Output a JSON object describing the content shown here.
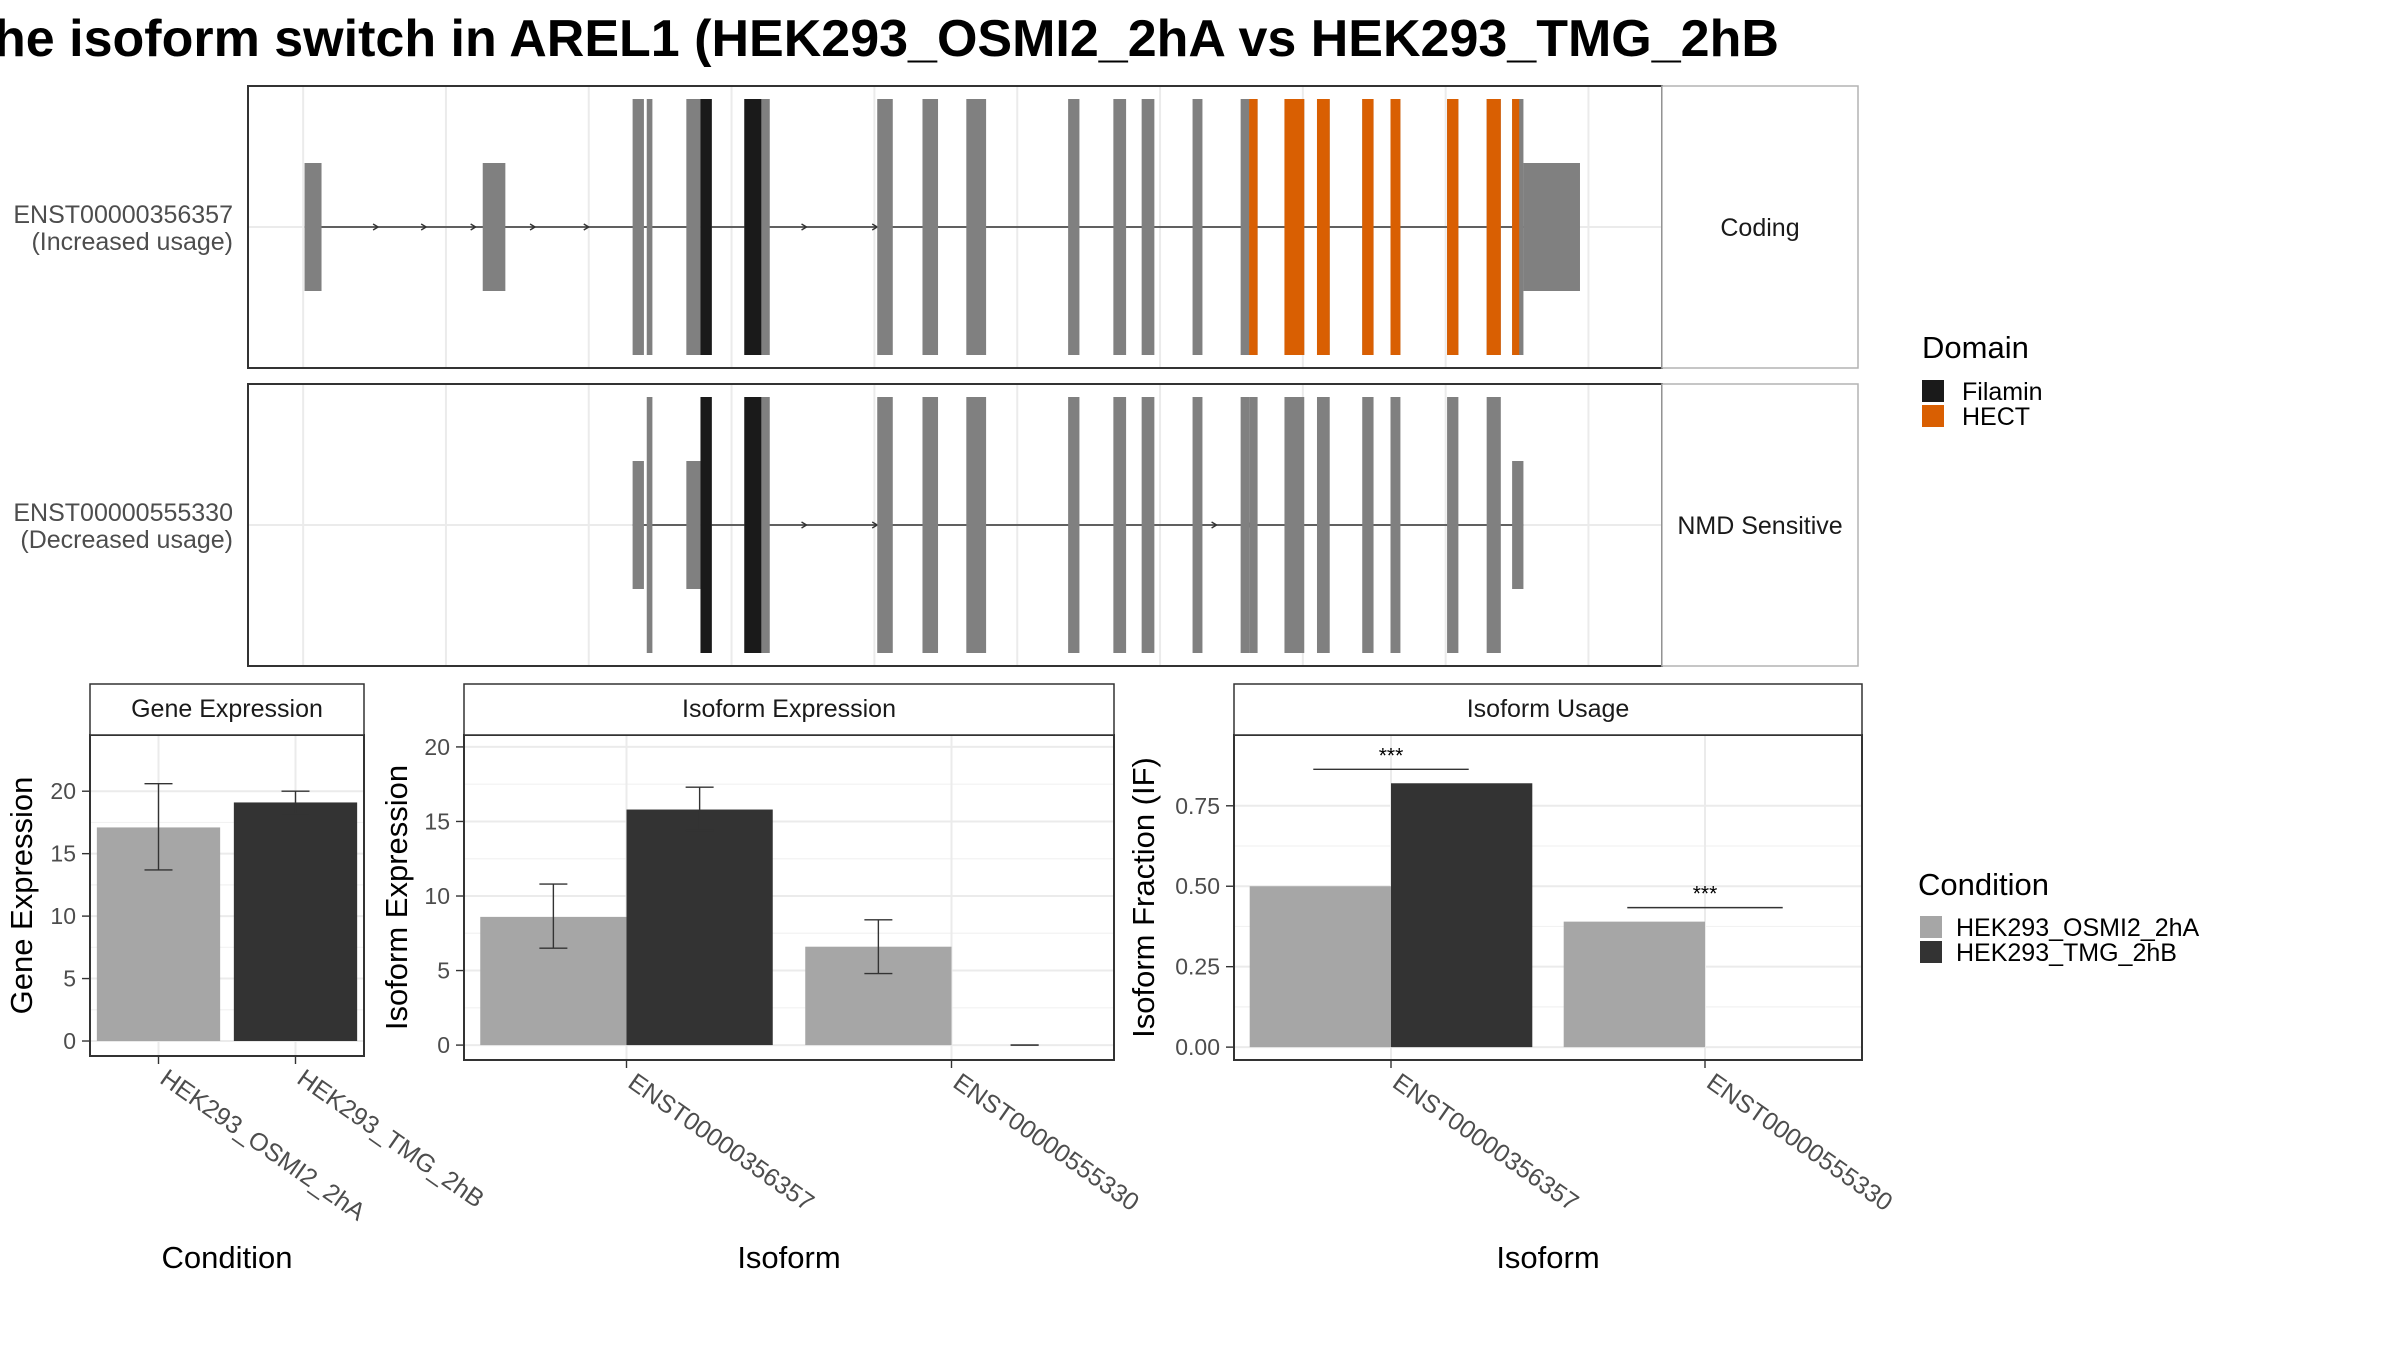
{
  "title": "he isoform switch in AREL1 (HEK293_OSMI2_2hA vs HEK293_TMG_2hB",
  "colors": {
    "exon": "#808080",
    "filamin": "#1a1a1a",
    "hect": "#d95f02",
    "cond_a": "#a6a6a6",
    "cond_b": "#333333",
    "strip_fill": "#ffffff",
    "grid": "#ebebeb",
    "border": "#333333",
    "strip_border": "#b3b3b3"
  },
  "transcripts": [
    {
      "label_line1": "ENST00000356357",
      "label_line2": "(Increased usage)",
      "strip": "Coding"
    },
    {
      "label_line1": "ENST00000555330",
      "label_line2": "(Decreased usage)",
      "strip": "NMD Sensitive"
    }
  ],
  "legend_domain": {
    "title": "Domain",
    "items": [
      {
        "label": "Filamin",
        "color": "#1a1a1a"
      },
      {
        "label": "HECT",
        "color": "#d95f02"
      }
    ]
  },
  "legend_condition": {
    "title": "Condition",
    "items": [
      {
        "label": "HEK293_OSMI2_2hA",
        "color": "#a6a6a6"
      },
      {
        "label": "HEK293_TMG_2hB",
        "color": "#333333"
      }
    ]
  },
  "chart_data": [
    {
      "type": "bar",
      "title": "Gene Expression",
      "xlabel": "Condition",
      "ylabel": "Gene Expression",
      "categories": [
        "HEK293_OSMI2_2hA",
        "HEK293_TMG_2hB"
      ],
      "series": [
        {
          "name": "HEK293_OSMI2_2hA",
          "values": [
            17.1,
            null
          ],
          "err_low": [
            13.7,
            null
          ],
          "err_high": [
            20.6,
            null
          ]
        },
        {
          "name": "HEK293_TMG_2hB",
          "values": [
            null,
            19.1
          ],
          "err_low": [
            null,
            18.2
          ],
          "err_high": [
            null,
            20.0
          ]
        }
      ],
      "ylim": [
        -1.2,
        24.5
      ],
      "yticks": [
        0,
        5,
        10,
        15,
        20
      ]
    },
    {
      "type": "bar",
      "title": "Isoform Expression",
      "xlabel": "Isoform",
      "ylabel": "Isoform Expression",
      "categories": [
        "ENST00000356357",
        "ENST00000555330"
      ],
      "series": [
        {
          "name": "HEK293_OSMI2_2hA",
          "values": [
            8.6,
            6.6
          ],
          "err_low": [
            6.5,
            4.8
          ],
          "err_high": [
            10.8,
            8.4
          ]
        },
        {
          "name": "HEK293_TMG_2hB",
          "values": [
            15.8,
            0.0
          ],
          "err_low": [
            14.4,
            0.0
          ],
          "err_high": [
            17.3,
            0.0
          ]
        }
      ],
      "ylim": [
        -1.0,
        20.8
      ],
      "yticks": [
        0,
        5,
        10,
        15,
        20
      ]
    },
    {
      "type": "bar",
      "title": "Isoform Usage",
      "xlabel": "Isoform",
      "ylabel": "Isoform Fraction (IF)",
      "categories": [
        "ENST00000356357",
        "ENST00000555330"
      ],
      "series": [
        {
          "name": "HEK293_OSMI2_2hA",
          "values": [
            0.5,
            0.39
          ]
        },
        {
          "name": "HEK293_TMG_2hB",
          "values": [
            0.82,
            0.0
          ]
        }
      ],
      "significance": [
        "***",
        "***"
      ],
      "ylim": [
        -0.04,
        0.97
      ],
      "yticks": [
        0.0,
        0.25,
        0.5,
        0.75
      ],
      "ytick_labels": [
        "0.00",
        "0.25",
        "0.50",
        "0.75"
      ]
    },
    {
      "type": "gene_structure",
      "genomic_extent": [
        0,
        100
      ],
      "transcripts": [
        {
          "id": "ENST00000356357",
          "exons": [
            [
              4.0,
              5.2
            ],
            [
              16.6,
              18.2
            ],
            [
              27.2,
              28.0
            ],
            [
              28.2,
              28.6
            ],
            [
              31.0,
              32.0
            ],
            [
              32.0,
              32.8
            ],
            [
              35.1,
              35.8
            ],
            [
              35.8,
              36.9
            ],
            [
              44.5,
              45.6
            ],
            [
              47.7,
              48.8
            ],
            [
              50.8,
              52.2
            ],
            [
              58.0,
              58.8
            ],
            [
              61.2,
              62.1
            ],
            [
              63.2,
              64.1
            ],
            [
              66.8,
              67.5
            ],
            [
              70.2,
              70.8
            ],
            [
              70.8,
              71.4
            ],
            [
              73.3,
              74.7
            ],
            [
              75.6,
              76.5
            ],
            [
              78.8,
              79.6
            ],
            [
              80.8,
              81.5
            ],
            [
              84.8,
              85.6
            ],
            [
              87.6,
              88.6
            ],
            [
              89.4,
              90.2
            ],
            [
              90.2,
              94.2
            ]
          ],
          "utr_exons": [
            0,
            1,
            24
          ],
          "domains": [
            {
              "name": "Filamin",
              "range": [
                32.0,
                32.8
              ]
            },
            {
              "name": "Filamin",
              "range": [
                35.1,
                36.3
              ]
            },
            {
              "name": "HECT",
              "range": [
                70.8,
                71.4
              ]
            },
            {
              "name": "HECT",
              "range": [
                73.3,
                74.7
              ]
            },
            {
              "name": "HECT",
              "range": [
                75.6,
                76.5
              ]
            },
            {
              "name": "HECT",
              "range": [
                78.8,
                79.6
              ]
            },
            {
              "name": "HECT",
              "range": [
                80.8,
                81.5
              ]
            },
            {
              "name": "HECT",
              "range": [
                84.8,
                85.6
              ]
            },
            {
              "name": "HECT",
              "range": [
                87.6,
                88.6
              ]
            },
            {
              "name": "HECT",
              "range": [
                89.4,
                89.9
              ]
            }
          ],
          "arrows": [
            9.2,
            12.6,
            16.1,
            20.3,
            24.1,
            36.1,
            39.5,
            44.5
          ]
        },
        {
          "id": "ENST00000555330",
          "exons": [
            [
              27.2,
              28.0
            ],
            [
              28.2,
              28.6
            ],
            [
              31.0,
              32.0
            ],
            [
              32.0,
              32.8
            ],
            [
              35.1,
              35.8
            ],
            [
              35.8,
              36.9
            ],
            [
              44.5,
              45.6
            ],
            [
              47.7,
              48.8
            ],
            [
              50.8,
              52.2
            ],
            [
              58.0,
              58.8
            ],
            [
              61.2,
              62.1
            ],
            [
              63.2,
              64.1
            ],
            [
              66.8,
              67.5
            ],
            [
              70.2,
              70.8
            ],
            [
              70.8,
              71.4
            ],
            [
              73.3,
              74.7
            ],
            [
              75.6,
              76.5
            ],
            [
              78.8,
              79.6
            ],
            [
              80.8,
              81.5
            ],
            [
              84.8,
              85.6
            ],
            [
              87.6,
              88.6
            ],
            [
              89.4,
              90.2
            ]
          ],
          "utr_exons": [
            0,
            2,
            21
          ],
          "domains": [
            {
              "name": "Filamin",
              "range": [
                32.0,
                32.8
              ]
            },
            {
              "name": "Filamin",
              "range": [
                35.1,
                36.3
              ]
            }
          ],
          "arrows": [
            39.5,
            44.5,
            68.5,
            71.0
          ]
        }
      ]
    }
  ]
}
